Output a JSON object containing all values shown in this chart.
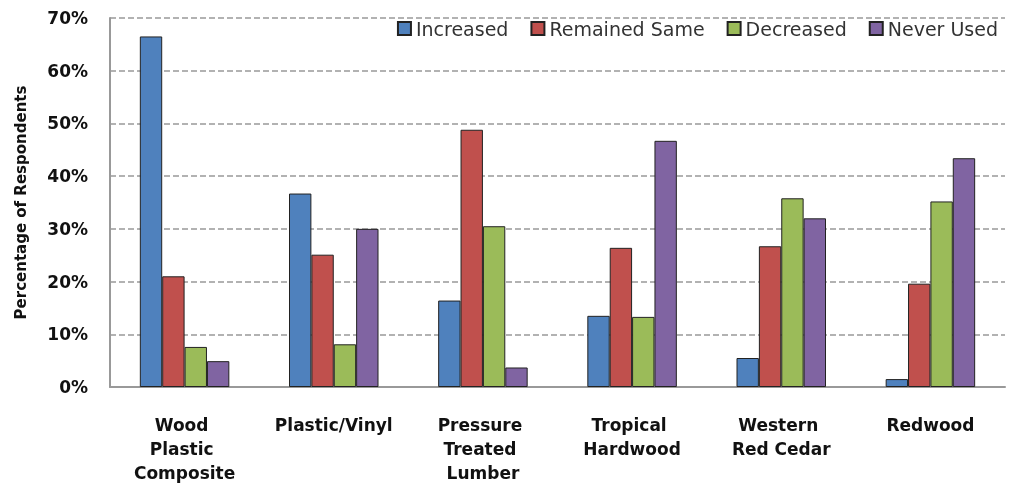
{
  "chart_data": {
    "type": "bar",
    "ylabel": "Percentage of Respondents",
    "categories": [
      "Wood Plastic Composite",
      "Plastic/Vinyl",
      "Pressure Treated Lumber",
      "Tropical Hardwood",
      "Western Red Cedar",
      "Redwood"
    ],
    "series": [
      {
        "name": "Increased",
        "color": "#4f81bd",
        "values": [
          66.5,
          36.7,
          16.4,
          13.5,
          5.5,
          1.5
        ]
      },
      {
        "name": "Remained Same",
        "color": "#c0504d",
        "values": [
          21.0,
          25.1,
          48.8,
          26.4,
          26.7,
          19.6
        ]
      },
      {
        "name": "Decreased",
        "color": "#9bbb59",
        "values": [
          7.6,
          8.1,
          30.5,
          13.3,
          35.8,
          35.2
        ]
      },
      {
        "name": "Never Used",
        "color": "#8064a2",
        "values": [
          4.9,
          30.0,
          3.7,
          46.7,
          32.0,
          43.4
        ]
      }
    ],
    "ylim": [
      0,
      70
    ],
    "yticks": [
      {
        "value": 0,
        "label": "0%"
      },
      {
        "value": 10,
        "label": "10%"
      },
      {
        "value": 20,
        "label": "20%"
      },
      {
        "value": 30,
        "label": "30%"
      },
      {
        "value": 40,
        "label": "40%"
      },
      {
        "value": 50,
        "label": "50%"
      },
      {
        "value": 60,
        "label": "60%"
      },
      {
        "value": 70,
        "label": "70%"
      }
    ],
    "grid": "y",
    "legend": "top right"
  }
}
